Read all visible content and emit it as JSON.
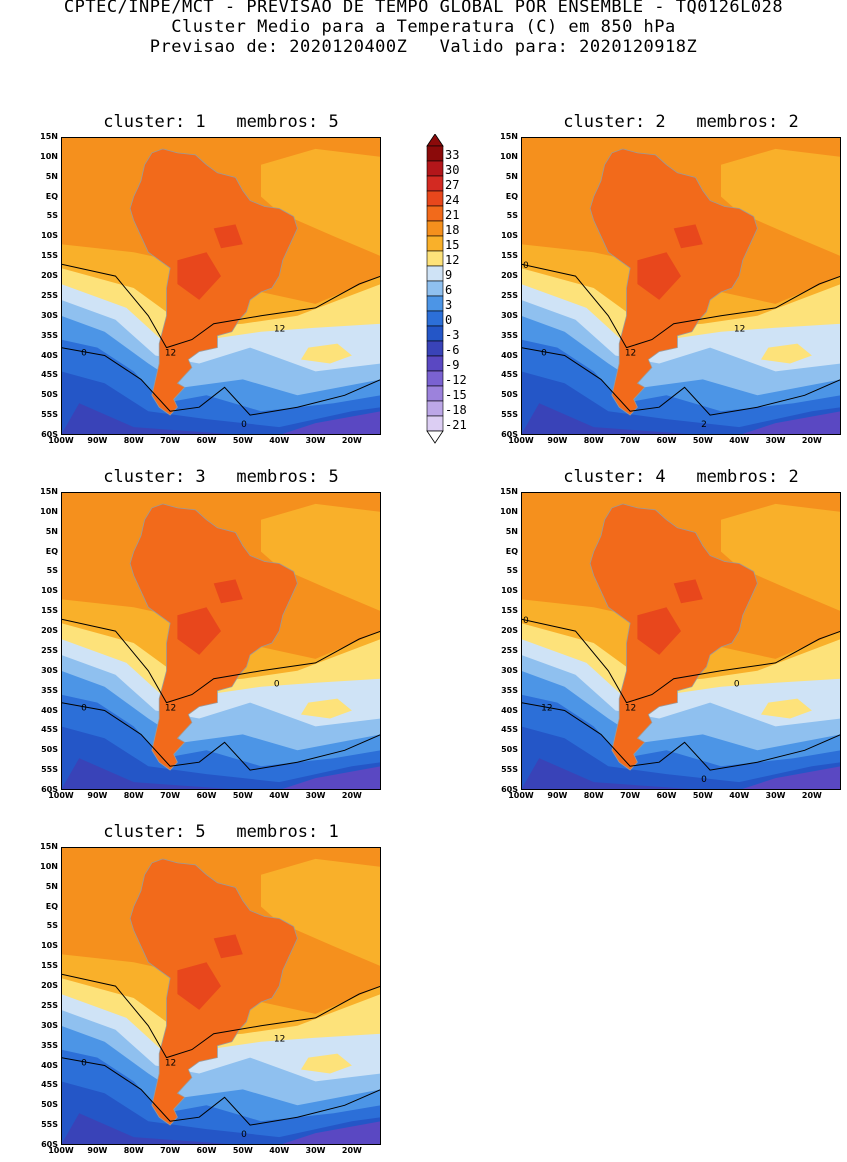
{
  "header": {
    "line1": "CPTEC/INPE/MCT - PREVISAO DE TEMPO GLOBAL POR ENSEMBLE - TQ0126L028",
    "line2": "Cluster Medio para a Temperatura (C) em 850 hPa",
    "line3": "Previsao de: 2020120400Z   Valido para: 2020120918Z"
  },
  "lat_labels": [
    "15N",
    "10N",
    "5N",
    "EQ",
    "5S",
    "10S",
    "15S",
    "20S",
    "25S",
    "30S",
    "35S",
    "40S",
    "45S",
    "50S",
    "55S",
    "60S"
  ],
  "lon_labels": [
    "100W",
    "90W",
    "80W",
    "70W",
    "60W",
    "50W",
    "40W",
    "30W",
    "20W"
  ],
  "colorbar": {
    "labels": [
      "33",
      "30",
      "27",
      "24",
      "21",
      "18",
      "15",
      "12",
      "9",
      "6",
      "3",
      "0",
      "-3",
      "-6",
      "-9",
      "-12",
      "-15",
      "-18",
      "-21"
    ],
    "colors": [
      "#8b0a0a",
      "#b3161a",
      "#d32a22",
      "#e8471c",
      "#f26a1b",
      "#f5901d",
      "#f9b02a",
      "#fde27a",
      "#cfe3f6",
      "#8fc0ef",
      "#4c95e6",
      "#2c6fd8",
      "#2456c7",
      "#3943b8",
      "#5a48c2",
      "#7a62d1",
      "#9c82dc",
      "#bca7e7",
      "#dccef3"
    ]
  },
  "panels": [
    {
      "title": "cluster: 1   membros: 5",
      "contour_labels": [
        "0",
        "12",
        "12",
        "0"
      ]
    },
    {
      "title": "cluster: 2   membros: 2",
      "contour_labels": [
        "0",
        "12",
        "12",
        "2",
        "0"
      ]
    },
    {
      "title": "cluster: 3   membros: 5",
      "contour_labels": [
        "0",
        "12",
        "0"
      ]
    },
    {
      "title": "cluster: 4   membros: 2",
      "contour_labels": [
        "12",
        "12",
        "0",
        "0",
        "0"
      ]
    },
    {
      "title": "cluster: 5   membros: 1",
      "contour_labels": [
        "0",
        "12",
        "12",
        "0"
      ]
    }
  ]
}
